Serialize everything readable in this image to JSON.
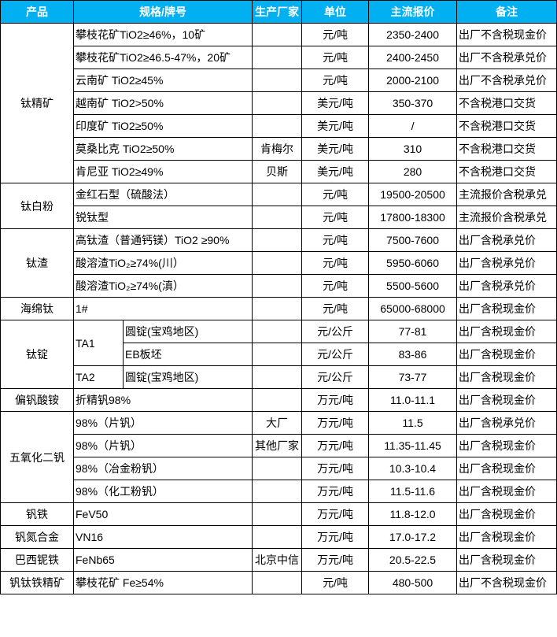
{
  "header_color": "#00B0F0",
  "headers": [
    "产品",
    "规格/牌号",
    "生产厂家",
    "单位",
    "主流报价",
    "备注"
  ],
  "groups": [
    {
      "product": "钛精矿",
      "rows": [
        {
          "spec": "攀枝花矿TiO2≥46%，10矿",
          "maker": "",
          "unit": "元/吨",
          "price": "2350-2400",
          "note": "出厂不含税现金价"
        },
        {
          "spec": "攀枝花矿TiO2≥46.5-47%，20矿",
          "maker": "",
          "unit": "元/吨",
          "price": "2400-2450",
          "note": "出厂不含税承兑价"
        },
        {
          "spec": "云南矿 TiO2≥45%",
          "maker": "",
          "unit": "元/吨",
          "price": "2000-2100",
          "note": "出厂不含税承兑价"
        },
        {
          "spec": "越南矿 TiO2>50%",
          "maker": "",
          "unit": "美元/吨",
          "price": "350-370",
          "note": "不含税港口交货"
        },
        {
          "spec": "印度矿 TiO2≥50%",
          "maker": "",
          "unit": "美元/吨",
          "price": "/",
          "note": "不含税港口交货"
        },
        {
          "spec": "莫桑比克 TiO2≥50%",
          "maker": "肯梅尔",
          "unit": "美元/吨",
          "price": "310",
          "note": "不含税港口交货"
        },
        {
          "spec": "肯尼亚 TiO2≥49%",
          "maker": "贝斯",
          "unit": "美元/吨",
          "price": "280",
          "note": "不含税港口交货"
        }
      ]
    },
    {
      "product": "钛白粉",
      "rows": [
        {
          "spec": "金红石型（硫酸法）",
          "maker": "",
          "unit": "元/吨",
          "price": "19500-20500",
          "note": "主流报价含税承兑"
        },
        {
          "spec": "锐钛型",
          "maker": "",
          "unit": "元/吨",
          "price": "17800-18300",
          "note": "主流报价含税承兑"
        }
      ]
    },
    {
      "product": "钛渣",
      "rows": [
        {
          "spec": "高钛渣（普通钙镁）TiO2 ≥90%",
          "maker": "",
          "unit": "元/吨",
          "price": "7500-7600",
          "note": "出厂含税承兑价"
        },
        {
          "spec": "酸溶渣TiO₂≥74%(川）",
          "maker": "",
          "unit": "元/吨",
          "price": "5950-6060",
          "note": "出厂含税承兑价"
        },
        {
          "spec": "酸溶渣TiO₂≥74%(滇）",
          "maker": "",
          "unit": "元/吨",
          "price": "5500-5600",
          "note": "出厂含税承兑价"
        }
      ]
    },
    {
      "product": "海绵钛",
      "rows": [
        {
          "spec": "1#",
          "maker": "",
          "unit": "元/吨",
          "price": "65000-68000",
          "note": "出厂含税现金价"
        }
      ]
    },
    {
      "product": "钛锭",
      "rows": [
        {
          "spec": "TA1",
          "spec_span": 2,
          "sub": "圆锭(宝鸡地区)",
          "maker": "",
          "unit": "元/公斤",
          "price": "77-81",
          "note": "出厂含税现金价"
        },
        {
          "sub": "EB板坯",
          "maker": "",
          "unit": "元/公斤",
          "price": "83-86",
          "note": "出厂含税现金价"
        },
        {
          "spec": "TA2",
          "spec_span": 1,
          "sub": "圆锭(宝鸡地区)",
          "maker": "",
          "unit": "元/公斤",
          "price": "73-77",
          "note": "出厂含税现金价"
        }
      ]
    },
    {
      "product": "偏钒酸铵",
      "rows": [
        {
          "spec": "折精钒98%",
          "maker": "",
          "unit": "万元/吨",
          "price": "11.0-11.1",
          "note": "出厂含税现金价"
        }
      ]
    },
    {
      "product": "五氧化二钒",
      "rows": [
        {
          "spec": "98%（片钒）",
          "maker": "大厂",
          "unit": "万元/吨",
          "price": "11.5",
          "note": "出厂含税承兑价"
        },
        {
          "spec": "98%（片钒）",
          "maker": "其他厂家",
          "unit": "万元/吨",
          "price": "11.35-11.45",
          "note": "出厂含税现金价"
        },
        {
          "spec": "98%（冶金粉钒）",
          "maker": "",
          "unit": "万元/吨",
          "price": "10.3-10.4",
          "note": "出厂含税现金价"
        },
        {
          "spec": "98%（化工粉钒）",
          "maker": "",
          "unit": "万元/吨",
          "price": "11.5-11.6",
          "note": "出厂含税现金价"
        }
      ]
    },
    {
      "product": "钒铁",
      "rows": [
        {
          "spec": "FeV50",
          "maker": "",
          "unit": "万元/吨",
          "price": "11.8-12.0",
          "note": "出厂含税现金价"
        }
      ]
    },
    {
      "product": "钒氮合金",
      "rows": [
        {
          "spec": "VN16",
          "maker": "",
          "unit": "万元/吨",
          "price": "17.0-17.2",
          "note": "出厂含税现金价"
        }
      ]
    },
    {
      "product": "巴西铌铁",
      "rows": [
        {
          "spec": "FeNb65",
          "maker": "北京中信",
          "unit": "万元/吨",
          "price": "20.5-22.5",
          "note": "出厂含税现金价"
        }
      ]
    },
    {
      "product": "钒钛铁精矿",
      "rows": [
        {
          "spec": "攀枝花矿 Fe≥54%",
          "maker": "",
          "unit": "元/吨",
          "price": "480-500",
          "note": "出厂不含税现金价"
        }
      ]
    }
  ]
}
